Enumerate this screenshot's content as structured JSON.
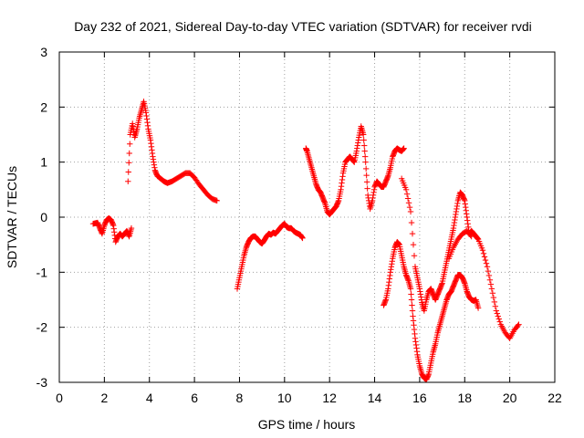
{
  "chart_data": {
    "type": "scatter",
    "title": "Day 232 of 2021, Sidereal Day-to-day VTEC variation (SDTVAR) for receiver rvdi",
    "xlabel": "GPS time / hours",
    "ylabel": "SDTVAR / TECUs",
    "xlim": [
      0,
      22
    ],
    "ylim": [
      -3,
      3
    ],
    "xticks": [
      "0",
      "2",
      "4",
      "6",
      "8",
      "10",
      "12",
      "14",
      "16",
      "18",
      "20",
      "22"
    ],
    "yticks": [
      "-3",
      "-2",
      "-1",
      "0",
      "1",
      "2",
      "3"
    ],
    "grid": true,
    "marker": "+",
    "color": "#ff0000",
    "series": [
      {
        "name": "s1",
        "x": [
          1.5,
          1.7,
          1.8,
          1.9,
          2.0,
          2.1,
          2.2,
          2.3,
          2.4,
          2.5,
          2.6,
          2.7,
          2.8,
          2.9,
          3.0,
          3.1,
          3.2
        ],
        "y": [
          -0.12,
          -0.1,
          -0.2,
          -0.3,
          -0.15,
          -0.05,
          -0.02,
          -0.05,
          -0.15,
          -0.45,
          -0.35,
          -0.3,
          -0.35,
          -0.3,
          -0.25,
          -0.35,
          -0.2
        ]
      },
      {
        "name": "s2",
        "x": [
          3.05,
          3.15,
          3.25,
          3.35,
          3.45,
          3.55,
          3.65,
          3.75,
          3.85,
          3.95,
          4.05,
          4.15,
          4.25,
          4.35,
          4.5,
          4.65,
          4.8,
          5.0,
          5.2,
          5.4,
          5.6,
          5.8,
          6.0,
          6.2,
          6.4,
          6.6,
          6.8,
          7.0
        ],
        "y": [
          0.65,
          1.5,
          1.7,
          1.45,
          1.6,
          1.8,
          1.95,
          2.1,
          1.9,
          1.6,
          1.4,
          1.1,
          0.85,
          0.75,
          0.7,
          0.65,
          0.62,
          0.65,
          0.7,
          0.75,
          0.8,
          0.8,
          0.72,
          0.6,
          0.5,
          0.4,
          0.33,
          0.3
        ]
      },
      {
        "name": "s3",
        "x": [
          7.9,
          8.0,
          8.1,
          8.2,
          8.3,
          8.4,
          8.5,
          8.6,
          8.7,
          8.8,
          8.9,
          9.0,
          9.1,
          9.2,
          9.3,
          9.4,
          9.5,
          9.6,
          9.7,
          9.8,
          9.9,
          10.0,
          10.1,
          10.2,
          10.3,
          10.4,
          10.5,
          10.6,
          10.7,
          10.8
        ],
        "y": [
          -1.3,
          -1.1,
          -0.9,
          -0.7,
          -0.55,
          -0.45,
          -0.38,
          -0.35,
          -0.35,
          -0.4,
          -0.45,
          -0.48,
          -0.42,
          -0.35,
          -0.3,
          -0.32,
          -0.28,
          -0.3,
          -0.25,
          -0.2,
          -0.15,
          -0.12,
          -0.18,
          -0.2,
          -0.2,
          -0.25,
          -0.28,
          -0.3,
          -0.32,
          -0.38
        ]
      },
      {
        "name": "s4",
        "x": [
          10.95,
          11.0,
          11.1,
          11.2,
          11.3,
          11.4,
          11.5,
          11.6,
          11.7,
          11.8,
          11.9,
          12.0,
          12.1,
          12.2,
          12.3,
          12.4,
          12.5,
          12.6,
          12.7,
          12.8,
          12.9,
          13.0,
          13.1,
          13.2,
          13.3,
          13.4,
          13.5,
          13.6,
          13.7,
          13.8,
          13.9,
          14.0,
          14.1,
          14.2,
          14.3,
          14.4,
          14.5,
          14.6,
          14.7,
          14.8,
          14.9,
          15.0,
          15.1,
          15.2,
          15.3
        ],
        "y": [
          1.25,
          1.2,
          1.05,
          0.9,
          0.75,
          0.6,
          0.5,
          0.45,
          0.35,
          0.25,
          0.1,
          0.05,
          0.1,
          0.15,
          0.2,
          0.3,
          0.5,
          0.8,
          1.0,
          1.05,
          1.1,
          1.05,
          1.0,
          1.2,
          1.45,
          1.65,
          1.5,
          1.0,
          0.4,
          0.15,
          0.3,
          0.55,
          0.65,
          0.6,
          0.55,
          0.55,
          0.65,
          0.75,
          0.9,
          1.1,
          1.2,
          1.25,
          1.22,
          1.2,
          1.25
        ]
      },
      {
        "name": "s5",
        "x": [
          14.4,
          14.5,
          14.6,
          14.7,
          14.8,
          14.9,
          15.0,
          15.1,
          15.2,
          15.3,
          15.4,
          15.5,
          15.6,
          15.7,
          15.8,
          15.9,
          16.0,
          16.1,
          16.2,
          16.3,
          16.4,
          16.5,
          16.6,
          16.7,
          16.8,
          16.9,
          17.0,
          17.1,
          17.2,
          17.3,
          17.4,
          17.5,
          17.6,
          17.7,
          17.8,
          17.9,
          18.0,
          18.1,
          18.2,
          18.3,
          18.4,
          18.5,
          18.6
        ],
        "y": [
          -1.6,
          -1.5,
          -1.3,
          -1.0,
          -0.75,
          -0.55,
          -0.45,
          -0.5,
          -0.7,
          -0.9,
          -1.05,
          -1.15,
          -1.3,
          -1.8,
          -2.2,
          -2.5,
          -2.7,
          -2.85,
          -2.92,
          -2.95,
          -2.85,
          -2.65,
          -2.45,
          -2.3,
          -2.1,
          -1.95,
          -1.8,
          -1.65,
          -1.5,
          -1.4,
          -1.35,
          -1.25,
          -1.15,
          -1.05,
          -1.05,
          -1.1,
          -1.2,
          -1.35,
          -1.45,
          -1.5,
          -1.52,
          -1.5,
          -1.65
        ]
      },
      {
        "name": "s6",
        "x": [
          15.2,
          15.4,
          15.6,
          15.8,
          15.9,
          16.0,
          16.1,
          16.2,
          16.3,
          16.4,
          16.5,
          16.6,
          16.7,
          16.8,
          16.9,
          17.0,
          17.1,
          17.2,
          17.3,
          17.4,
          17.5,
          17.6,
          17.7,
          17.8,
          17.9,
          18.0,
          18.1,
          18.2,
          18.3,
          18.4,
          18.5,
          18.6,
          18.8,
          19.0,
          19.2,
          19.4,
          19.6,
          19.8,
          20.0,
          20.2,
          20.4
        ],
        "y": [
          0.7,
          0.5,
          0.1,
          -0.9,
          -1.1,
          -1.3,
          -1.55,
          -1.7,
          -1.5,
          -1.35,
          -1.3,
          -1.4,
          -1.5,
          -1.4,
          -1.3,
          -1.2,
          -1.0,
          -0.8,
          -0.6,
          -0.4,
          -0.2,
          0.05,
          0.3,
          0.45,
          0.4,
          0.3,
          0.0,
          -0.3,
          -0.25,
          -0.3,
          -0.35,
          -0.4,
          -0.6,
          -0.9,
          -1.3,
          -1.7,
          -1.95,
          -2.1,
          -2.2,
          -2.05,
          -1.95
        ]
      },
      {
        "name": "s7",
        "x": [
          17.3,
          17.5,
          17.7,
          17.9,
          18.1,
          18.3
        ],
        "y": [
          -0.75,
          -0.55,
          -0.4,
          -0.3,
          -0.25,
          -0.35
        ]
      }
    ]
  }
}
